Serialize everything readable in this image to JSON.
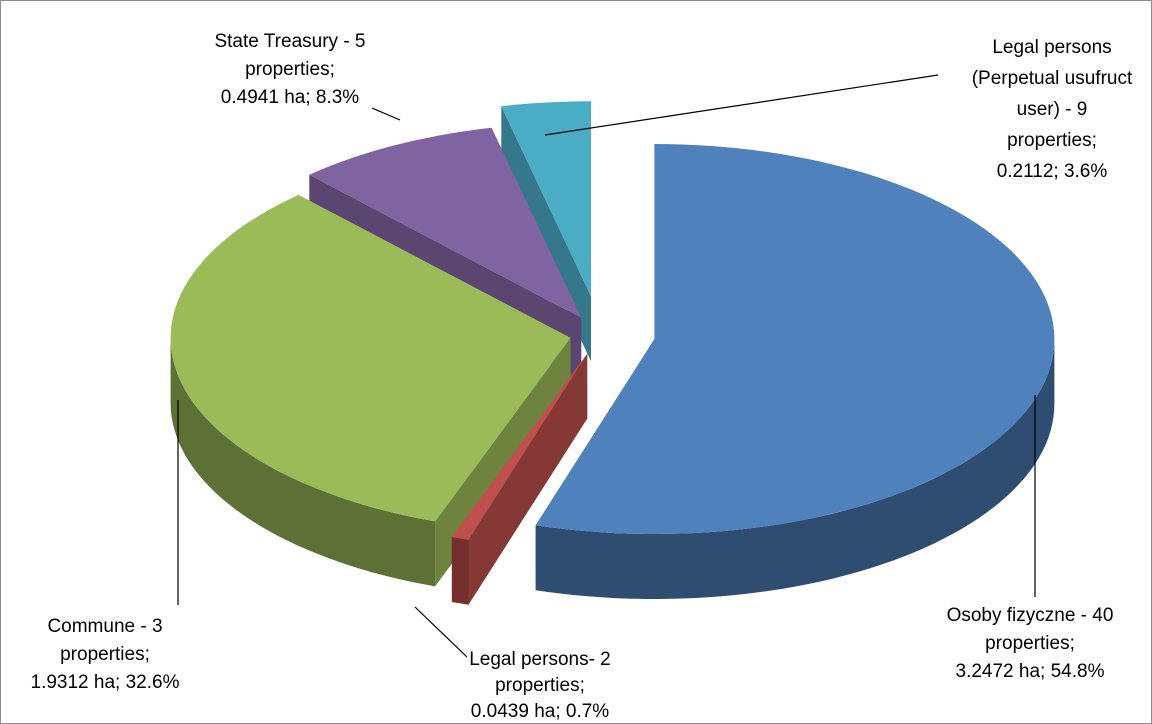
{
  "chart_data": {
    "type": "pie3d",
    "values": [
      54.8,
      0.7,
      32.6,
      8.3,
      3.6
    ],
    "value_labels": [
      [
        "Osoby fizyczne - 40",
        "properties;",
        "3.2472 ha; 54.8%"
      ],
      [
        "Legal persons- 2",
        "properties;",
        "0.0439 ha; 0.7%"
      ],
      [
        "Commune - 3",
        "properties;",
        "1.9312 ha; 32.6%"
      ],
      [
        "State Treasury - 5",
        "properties;",
        "0.4941 ha; 8.3%"
      ],
      [
        "Legal persons",
        "(Perpetual usufruct",
        "user) - 9",
        "properties;",
        "0.2112; 3.6%"
      ]
    ],
    "colors": [
      "#4f81bd",
      "#c0504d",
      "#9bbb59",
      "#8064a2",
      "#4bacc6"
    ]
  }
}
